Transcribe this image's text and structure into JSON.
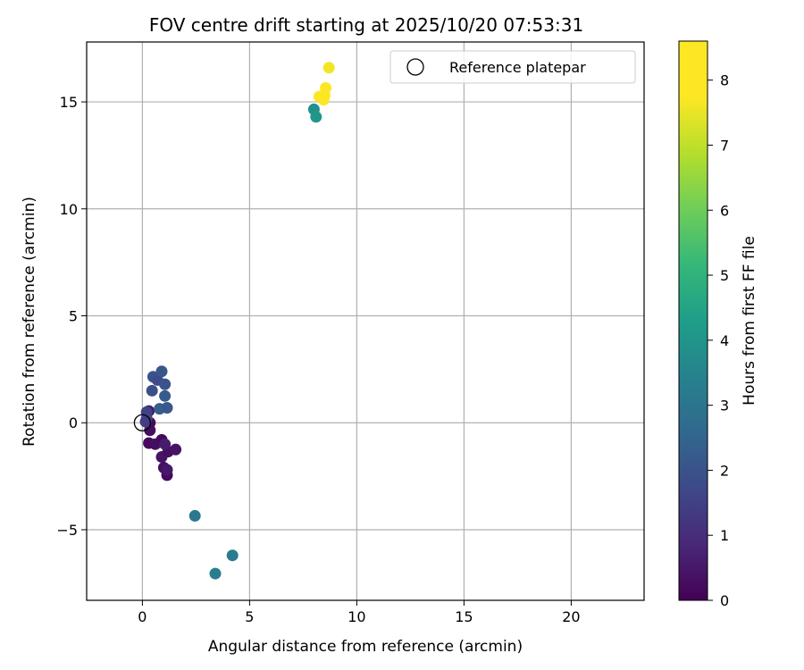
{
  "chart_data": {
    "type": "scatter",
    "title": "FOV centre drift starting at 2025/10/20 07:53:31",
    "xlabel": "Angular distance from reference (arcmin)",
    "ylabel": "Rotation from reference (arcmin)",
    "xlim": [
      -2.6,
      23.4
    ],
    "ylim": [
      -8.3,
      17.8
    ],
    "xticks": [
      0,
      5,
      10,
      15,
      20
    ],
    "yticks": [
      -5,
      0,
      5,
      10,
      15
    ],
    "grid": true,
    "legend": {
      "position": "upper right",
      "label": "Reference platepar"
    },
    "reference_point": {
      "x": 0,
      "y": 0
    },
    "colorbar": {
      "label": "Hours from first FF file",
      "range": [
        0,
        8.6
      ],
      "ticks": [
        0,
        1,
        2,
        3,
        4,
        5,
        6,
        7,
        8
      ],
      "colormap": "viridis"
    },
    "points": [
      {
        "x": 0.3,
        "y": 0.55,
        "t": 0.5
      },
      {
        "x": 0.35,
        "y": 0.0,
        "t": 0.2
      },
      {
        "x": 0.35,
        "y": -0.35,
        "t": 0.3
      },
      {
        "x": 0.3,
        "y": -0.95,
        "t": 0.2
      },
      {
        "x": 0.6,
        "y": -1.0,
        "t": 0.3
      },
      {
        "x": 0.9,
        "y": -0.8,
        "t": 0.2
      },
      {
        "x": 0.9,
        "y": -1.6,
        "t": 0.4
      },
      {
        "x": 1.0,
        "y": -2.1,
        "t": 0.3
      },
      {
        "x": 1.15,
        "y": -2.45,
        "t": 0.2
      },
      {
        "x": 1.15,
        "y": -2.2,
        "t": 0.5
      },
      {
        "x": 1.2,
        "y": -1.35,
        "t": 0.3
      },
      {
        "x": 1.55,
        "y": -1.25,
        "t": 0.4
      },
      {
        "x": 1.05,
        "y": -1.0,
        "t": 0.6
      },
      {
        "x": 0.2,
        "y": 0.5,
        "t": 1.5
      },
      {
        "x": 0.2,
        "y": 0.2,
        "t": 1.6
      },
      {
        "x": 0.15,
        "y": 0.05,
        "t": 1.4
      },
      {
        "x": 0.45,
        "y": 1.5,
        "t": 1.9
      },
      {
        "x": 0.5,
        "y": 2.15,
        "t": 2.0
      },
      {
        "x": 0.7,
        "y": 2.0,
        "t": 1.8
      },
      {
        "x": 0.9,
        "y": 2.4,
        "t": 2.1
      },
      {
        "x": 1.05,
        "y": 1.8,
        "t": 2.0
      },
      {
        "x": 1.05,
        "y": 1.25,
        "t": 2.2
      },
      {
        "x": 0.8,
        "y": 0.65,
        "t": 2.3
      },
      {
        "x": 1.15,
        "y": 0.7,
        "t": 2.1
      },
      {
        "x": 2.45,
        "y": -4.35,
        "t": 3.1
      },
      {
        "x": 4.2,
        "y": -6.2,
        "t": 3.2
      },
      {
        "x": 3.4,
        "y": -7.05,
        "t": 3.3
      },
      {
        "x": 8.0,
        "y": 14.65,
        "t": 3.9
      },
      {
        "x": 8.1,
        "y": 14.3,
        "t": 4.1
      },
      {
        "x": 8.25,
        "y": 15.25,
        "t": 8.6
      },
      {
        "x": 8.45,
        "y": 15.1,
        "t": 8.4
      },
      {
        "x": 8.5,
        "y": 15.3,
        "t": 8.5
      },
      {
        "x": 8.55,
        "y": 15.65,
        "t": 7.9
      },
      {
        "x": 8.7,
        "y": 16.6,
        "t": 7.6
      }
    ]
  }
}
